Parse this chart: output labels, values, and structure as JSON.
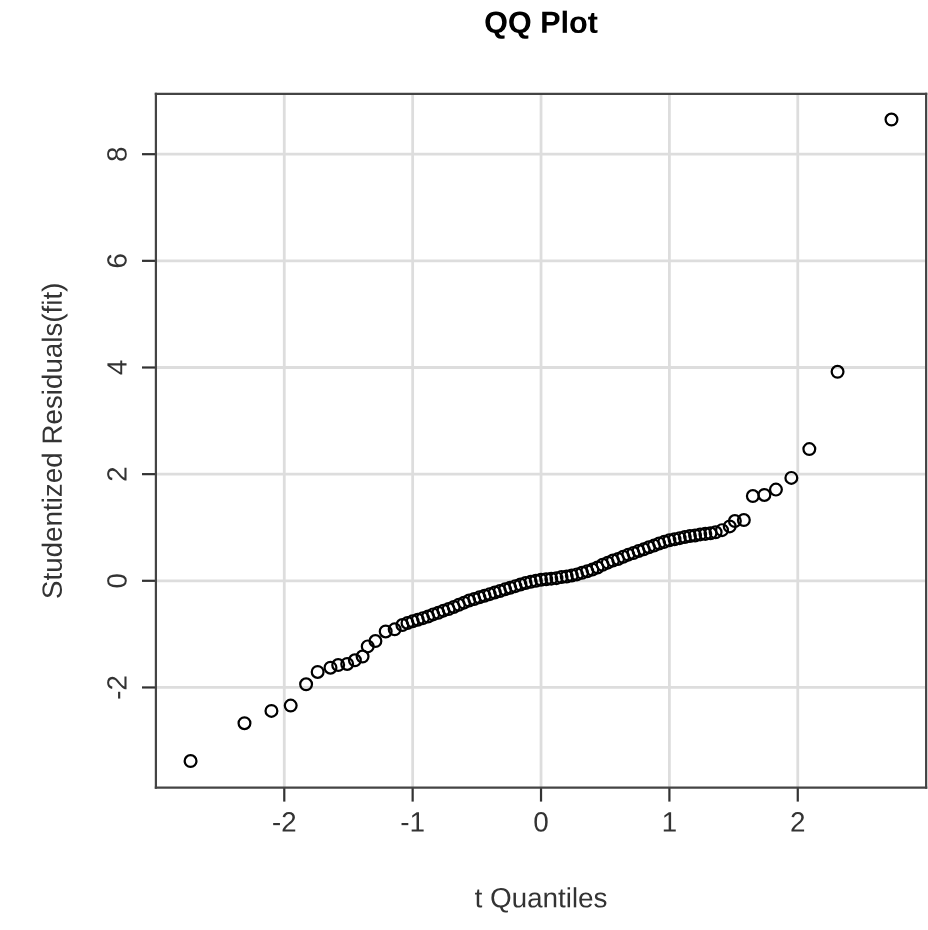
{
  "chart_data": {
    "type": "scatter",
    "title": "QQ Plot",
    "xlabel": "t Quantiles",
    "ylabel": "Studentized Residuals(fit)",
    "x": [
      -2.73,
      -2.31,
      -2.1,
      -1.95,
      -1.83,
      -1.74,
      -1.64,
      -1.58,
      -1.51,
      -1.45,
      -1.39,
      -1.35,
      -1.29,
      -1.21,
      -1.14,
      -1.08,
      -1.04,
      -1.0,
      -0.96,
      -0.92,
      -0.88,
      -0.84,
      -0.8,
      -0.76,
      -0.72,
      -0.68,
      -0.64,
      -0.6,
      -0.56,
      -0.52,
      -0.48,
      -0.44,
      -0.4,
      -0.36,
      -0.32,
      -0.28,
      -0.24,
      -0.2,
      -0.16,
      -0.12,
      -0.08,
      -0.04,
      0.0,
      0.04,
      0.08,
      0.12,
      0.16,
      0.2,
      0.24,
      0.28,
      0.32,
      0.36,
      0.4,
      0.44,
      0.48,
      0.52,
      0.56,
      0.6,
      0.64,
      0.68,
      0.72,
      0.76,
      0.8,
      0.84,
      0.88,
      0.92,
      0.96,
      1.0,
      1.04,
      1.08,
      1.12,
      1.16,
      1.2,
      1.24,
      1.28,
      1.32,
      1.36,
      1.41,
      1.47,
      1.51,
      1.58,
      1.65,
      1.74,
      1.83,
      1.95,
      2.09,
      2.31,
      2.73
    ],
    "values": [
      -3.38,
      -2.67,
      -2.44,
      -2.34,
      -1.94,
      -1.71,
      -1.63,
      -1.58,
      -1.56,
      -1.49,
      -1.42,
      -1.23,
      -1.13,
      -0.95,
      -0.91,
      -0.83,
      -0.79,
      -0.76,
      -0.73,
      -0.7,
      -0.67,
      -0.63,
      -0.6,
      -0.56,
      -0.53,
      -0.49,
      -0.45,
      -0.41,
      -0.37,
      -0.34,
      -0.31,
      -0.28,
      -0.25,
      -0.22,
      -0.19,
      -0.16,
      -0.13,
      -0.1,
      -0.07,
      -0.04,
      -0.02,
      0.0,
      0.02,
      0.03,
      0.04,
      0.05,
      0.07,
      0.08,
      0.1,
      0.12,
      0.15,
      0.18,
      0.21,
      0.25,
      0.3,
      0.34,
      0.38,
      0.41,
      0.45,
      0.49,
      0.52,
      0.56,
      0.59,
      0.63,
      0.66,
      0.7,
      0.73,
      0.76,
      0.78,
      0.8,
      0.82,
      0.84,
      0.85,
      0.87,
      0.88,
      0.89,
      0.91,
      0.95,
      1.02,
      1.12,
      1.14,
      1.59,
      1.61,
      1.71,
      1.93,
      2.47,
      3.92,
      8.65
    ],
    "color": "#000000",
    "marker": "circle",
    "grid": true,
    "xlim": [
      -3.0,
      3.0
    ],
    "xticks": [
      -2,
      -1,
      0,
      1,
      2
    ],
    "ylim": [
      -3.88,
      9.13
    ],
    "yticks": [
      -2,
      0,
      2,
      4,
      6,
      8
    ]
  }
}
